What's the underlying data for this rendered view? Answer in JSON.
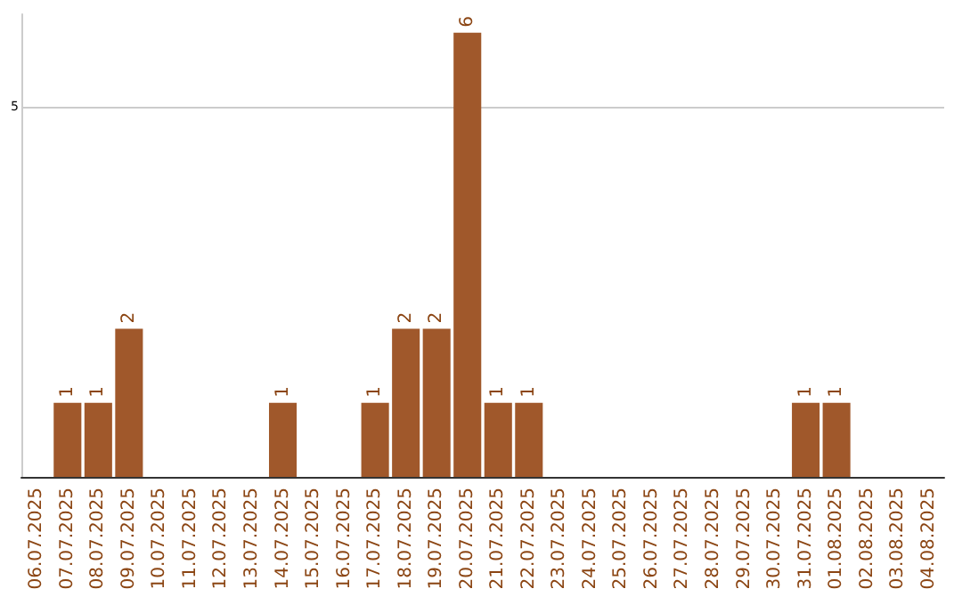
{
  "chart_data": {
    "type": "bar",
    "categories": [
      "06.07.2025",
      "07.07.2025",
      "08.07.2025",
      "09.07.2025",
      "10.07.2025",
      "11.07.2025",
      "12.07.2025",
      "13.07.2025",
      "14.07.2025",
      "15.07.2025",
      "16.07.2025",
      "17.07.2025",
      "18.07.2025",
      "19.07.2025",
      "20.07.2025",
      "21.07.2025",
      "22.07.2025",
      "23.07.2025",
      "24.07.2025",
      "25.07.2025",
      "26.07.2025",
      "27.07.2025",
      "28.07.2025",
      "29.07.2025",
      "30.07.2025",
      "31.07.2025",
      "01.08.2025",
      "02.08.2025",
      "03.08.2025",
      "04.08.2025"
    ],
    "values": [
      0,
      1,
      1,
      2,
      0,
      0,
      0,
      0,
      1,
      0,
      0,
      1,
      2,
      2,
      6,
      1,
      1,
      0,
      0,
      0,
      0,
      0,
      0,
      0,
      0,
      1,
      1,
      0,
      0,
      0
    ],
    "value_labels": [
      null,
      "1",
      "1",
      "2",
      null,
      null,
      null,
      null,
      "1",
      null,
      null,
      "1",
      "2",
      "2",
      "6",
      "1",
      "1",
      null,
      null,
      null,
      null,
      null,
      null,
      null,
      null,
      "1",
      "1",
      null,
      null,
      null
    ],
    "color": "#a0582b",
    "ylim": [
      0,
      6.25
    ],
    "yticks": [
      5
    ],
    "grid": "y"
  }
}
